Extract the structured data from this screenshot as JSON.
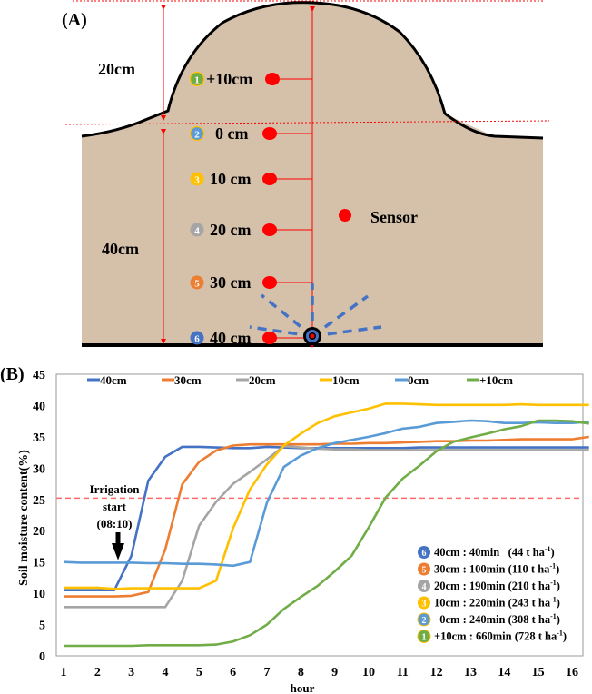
{
  "panel_a": {
    "label": "(A)",
    "ridge_height_label": "20cm",
    "soil_depth_label": "40cm",
    "sensor_legend_label": "Sensor",
    "sensors": [
      {
        "num": "1",
        "label": "+10cm",
        "color": "#70ad47"
      },
      {
        "num": "2",
        "label": "0 cm",
        "color": "#5b9bd5"
      },
      {
        "num": "3",
        "label": "10 cm",
        "color": "#ffc000"
      },
      {
        "num": "4",
        "label": "20 cm",
        "color": "#a5a5a5"
      },
      {
        "num": "5",
        "label": "30 cm",
        "color": "#ed7d31"
      },
      {
        "num": "6",
        "label": "40 cm",
        "color": "#4472c4"
      }
    ],
    "colors": {
      "soil": "#d5c0aa",
      "sensor": "#ff0000",
      "dimension": "#ff0000",
      "water": "#4472c4"
    }
  },
  "chart_data": {
    "type": "line",
    "panel_label": "(B)",
    "title": "",
    "xlabel": "hour",
    "ylabel": "Soil moisture content(%)",
    "xlim": [
      1,
      16.5
    ],
    "ylim": [
      0,
      45
    ],
    "x_ticks": [
      1,
      2,
      3,
      4,
      5,
      6,
      7,
      8,
      9,
      10,
      11,
      12,
      13,
      14,
      15,
      16
    ],
    "y_ticks": [
      0,
      5,
      10,
      15,
      20,
      25,
      30,
      35,
      40,
      45
    ],
    "grid": false,
    "legend_position": "top",
    "reference_line": {
      "y": 25.2,
      "color": "#ff6b6b",
      "style": "dashed"
    },
    "annotation": {
      "lines": [
        "Irrigation",
        "start",
        "(08:10)"
      ],
      "x": 2.6,
      "arrow_to_y": 15
    },
    "x": [
      1,
      1.5,
      2,
      2.5,
      3,
      3.5,
      4,
      4.5,
      5,
      5.5,
      6,
      6.5,
      7,
      7.5,
      8,
      8.5,
      9,
      9.5,
      10,
      10.5,
      11,
      11.5,
      12,
      12.5,
      13,
      13.5,
      14,
      14.5,
      15,
      15.5,
      16,
      16.5
    ],
    "series": [
      {
        "name": "40cm",
        "color": "#4472c4",
        "values": [
          10.5,
          10.5,
          10.5,
          10.5,
          16,
          28,
          31.8,
          33.4,
          33.4,
          33.3,
          33.2,
          33.2,
          33.4,
          33.3,
          33.2,
          33.2,
          33.2,
          33.2,
          33.2,
          33.2,
          33.2,
          33.3,
          33.3,
          33.3,
          33.3,
          33.3,
          33.3,
          33.3,
          33.3,
          33.3,
          33.3,
          33.3
        ]
      },
      {
        "name": "30cm",
        "color": "#ed7d31",
        "values": [
          9.5,
          9.5,
          9.5,
          9.5,
          9.6,
          10.2,
          17,
          27.4,
          31,
          32.8,
          33.6,
          33.8,
          33.8,
          33.8,
          33.8,
          33.8,
          33.9,
          33.9,
          34,
          34,
          34.1,
          34.2,
          34.3,
          34.3,
          34.4,
          34.4,
          34.5,
          34.6,
          34.6,
          34.6,
          34.6,
          35
        ]
      },
      {
        "name": "20cm",
        "color": "#a5a5a5",
        "values": [
          7.8,
          7.8,
          7.8,
          7.8,
          7.8,
          7.8,
          7.8,
          12,
          20.8,
          24.6,
          27.5,
          29.4,
          31.4,
          33.5,
          33.3,
          33.1,
          33,
          33,
          32.9,
          32.9,
          32.9,
          32.9,
          32.9,
          32.9,
          32.9,
          32.9,
          32.9,
          32.9,
          32.9,
          32.9,
          32.9,
          32.9
        ]
      },
      {
        "name": "10cm",
        "color": "#ffc000",
        "values": [
          10.9,
          10.9,
          10.9,
          10.7,
          10.8,
          10.8,
          10.8,
          10.8,
          10.8,
          12,
          20.4,
          26.6,
          30.6,
          33.6,
          35.5,
          37.2,
          38.3,
          38.9,
          39.5,
          40.3,
          40.3,
          40.2,
          40.1,
          40.1,
          40.1,
          40.1,
          40.1,
          40.2,
          40.1,
          40.1,
          40.1,
          40.1
        ]
      },
      {
        "name": "0cm",
        "color": "#5b9bd5",
        "values": [
          15,
          14.9,
          14.9,
          14.9,
          14.9,
          14.8,
          14.8,
          14.7,
          14.7,
          14.6,
          14.4,
          15,
          24.5,
          30.2,
          32,
          33.2,
          34,
          34.5,
          35,
          35.6,
          36.3,
          36.6,
          37.2,
          37.4,
          37.6,
          37.5,
          37.2,
          37.2,
          37.3,
          37.2,
          37.2,
          37.4
        ]
      },
      {
        "name": "+10cm",
        "color": "#70ad47",
        "values": [
          1.6,
          1.6,
          1.6,
          1.6,
          1.6,
          1.7,
          1.7,
          1.7,
          1.7,
          1.8,
          2.3,
          3.3,
          5,
          7.5,
          9.4,
          11.2,
          13.5,
          16,
          20.5,
          25.3,
          28.3,
          30.4,
          32.7,
          34.2,
          34.9,
          35.5,
          36.2,
          36.7,
          37.6,
          37.6,
          37.5,
          37.1
        ]
      }
    ],
    "inset_legend": [
      {
        "num": "6",
        "color": "#4472c4",
        "text": "40cm : 40min   (44 t ha",
        "sup": "-1",
        "close": ")"
      },
      {
        "num": "5",
        "color": "#ed7d31",
        "text": "30cm : 100min (110 t ha",
        "sup": "-1",
        "close": ")"
      },
      {
        "num": "4",
        "color": "#a5a5a5",
        "text": "20cm : 190min (210 t ha",
        "sup": "-1",
        "close": ")"
      },
      {
        "num": "3",
        "color": "#ffc000",
        "text": "10cm : 220min (243 t ha",
        "sup": "-1",
        "close": ")"
      },
      {
        "num": "2",
        "color": "#5b9bd5",
        "text": "  0cm : 240min (308 t ha",
        "sup": "-1",
        "close": ")"
      },
      {
        "num": "1",
        "color": "#70ad47",
        "text": "+10cm : 660min (728 t ha",
        "sup": "-1",
        "close": ")"
      }
    ]
  }
}
